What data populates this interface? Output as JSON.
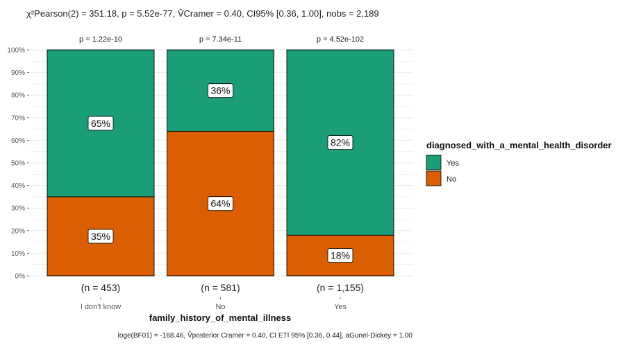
{
  "chart_data": {
    "type": "bar",
    "stacked": true,
    "subtitle": "χ²Pearson(2) = 351.18, p = 5.52e-77, V̂Cramer = 0.40, CI95% [0.36, 1.00], nobs = 2,189",
    "caption": "loge(BF01) = -168.46, V̂posterior Cramer = 0.40, CI ETI 95% [0.36, 0.44], aGunel-Dickey = 1.00",
    "xlabel": "family_history_of_mental_illness",
    "ylabel": "",
    "ylim": [
      0,
      100
    ],
    "y_ticks": [
      "0%",
      "10%",
      "20%",
      "30%",
      "40%",
      "50%",
      "60%",
      "70%",
      "80%",
      "90%",
      "100%"
    ],
    "categories": [
      "I don't know",
      "No",
      "Yes"
    ],
    "n_labels": [
      "(n = 453)",
      "(n = 581)",
      "(n = 1,155)"
    ],
    "p_labels": [
      "p = 1.22e-10",
      "p = 7.34e-11",
      "p = 4.52e-102"
    ],
    "series": [
      {
        "name": "No",
        "color": "#d95f02",
        "values": [
          35,
          64,
          18
        ],
        "labels": [
          "35%",
          "64%",
          "18%"
        ]
      },
      {
        "name": "Yes",
        "color": "#1b9e77",
        "values": [
          65,
          36,
          82
        ],
        "labels": [
          "65%",
          "36%",
          "82%"
        ]
      }
    ],
    "legend": {
      "title": "diagnosed_with_a_mental_health_disorder",
      "position": "right",
      "entries": [
        {
          "label": "Yes",
          "color": "#1b9e77"
        },
        {
          "label": "No",
          "color": "#d95f02"
        }
      ]
    },
    "grid": true
  }
}
